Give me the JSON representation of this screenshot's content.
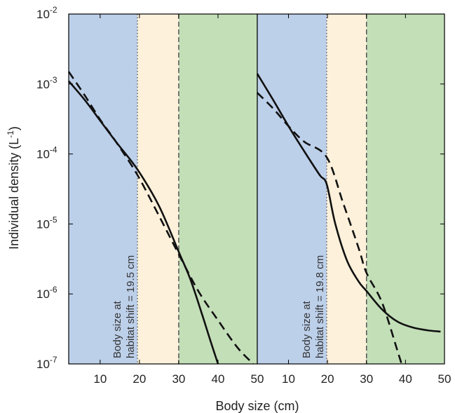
{
  "chart_data": [
    {
      "type": "line",
      "panel": "left",
      "xlim": [
        2,
        50
      ],
      "ylim": [
        1e-07,
        0.01
      ],
      "y_scale": "log",
      "x_ticks": [
        10,
        20,
        30,
        40,
        50
      ],
      "y_tick_exponents": [
        -2,
        -3,
        -4,
        -5,
        -6,
        -7
      ],
      "regions": [
        {
          "x0": 2,
          "x1": 19.5,
          "color": "#bdd0ea"
        },
        {
          "x0": 19.5,
          "x1": 30,
          "color": "#fdf1db"
        },
        {
          "x0": 30,
          "x1": 50,
          "color": "#c3dfb8"
        }
      ],
      "vlines": [
        {
          "x": 19.5,
          "style": "dotted"
        },
        {
          "x": 30,
          "style": "dashed"
        }
      ],
      "annotation": [
        "Body size at",
        "habitat shift = 19.5 cm"
      ],
      "series": [
        {
          "style": "solid",
          "x": [
            2,
            6,
            10,
            14,
            19.5,
            25,
            30,
            33,
            36,
            38,
            40
          ],
          "y": [
            0.0011,
            0.0006,
            0.0003,
            0.00015,
            6e-05,
            1.8e-05,
            4e-06,
            1.6e-06,
            5e-07,
            2.2e-07,
            1e-07
          ]
        },
        {
          "style": "dashed",
          "x": [
            2,
            6,
            10,
            14,
            19.5,
            25,
            30,
            35,
            40,
            45,
            49
          ],
          "y": [
            0.0015,
            0.0007,
            0.00031,
            0.00015,
            5e-05,
            1.3e-05,
            3.7e-06,
            1.1e-06,
            4.2e-07,
            1.7e-07,
            1e-07
          ]
        }
      ]
    },
    {
      "type": "line",
      "panel": "right",
      "xlim": [
        2,
        50
      ],
      "ylim": [
        1e-07,
        0.01
      ],
      "y_scale": "log",
      "x_ticks": [
        10,
        20,
        30,
        40,
        50
      ],
      "regions": [
        {
          "x0": 2,
          "x1": 19.8,
          "color": "#bdd0ea"
        },
        {
          "x0": 19.8,
          "x1": 30,
          "color": "#fdf1db"
        },
        {
          "x0": 30,
          "x1": 50,
          "color": "#c3dfb8"
        }
      ],
      "vlines": [
        {
          "x": 19.8,
          "style": "dotted"
        },
        {
          "x": 30,
          "style": "dashed"
        }
      ],
      "annotation": [
        "Body size at",
        "habitat shift = 19.8 cm"
      ],
      "series": [
        {
          "style": "solid",
          "x": [
            2,
            6,
            10,
            14,
            18,
            19.8,
            22,
            25,
            28,
            30,
            34,
            38,
            42,
            46,
            49
          ],
          "y": [
            0.0014,
            0.0006,
            0.00025,
            0.00011,
            5e-05,
            3.7e-05,
            1e-05,
            3e-06,
            1.5e-06,
            1.1e-06,
            6e-07,
            4e-07,
            3.3e-07,
            3e-07,
            2.9e-07
          ]
        },
        {
          "style": "dashed",
          "x": [
            2,
            6,
            10,
            14,
            19.8,
            24,
            28,
            30,
            34,
            38,
            39
          ],
          "y": [
            0.00075,
            0.00045,
            0.00025,
            0.00015,
            9e-05,
            2e-05,
            4.5e-06,
            2e-06,
            7.5e-07,
            1.5e-07,
            1e-07
          ]
        }
      ]
    }
  ],
  "labels": {
    "xlabel": "Body size (cm)",
    "ylabel_main": "Individual density (L",
    "ylabel_sup": "-1",
    "ylabel_end": ")",
    "y_tick_base": "10",
    "x_tick_labels": [
      "10",
      "20",
      "30",
      "40",
      "50"
    ],
    "y_tick_sups": [
      "-2",
      "-3",
      "-4",
      "-5",
      "-6",
      "-7"
    ]
  },
  "colors": {
    "blue_region": "#bdd0ea",
    "yellow_region": "#fdf1db",
    "green_region": "#c3dfb8",
    "line": "#111111"
  }
}
